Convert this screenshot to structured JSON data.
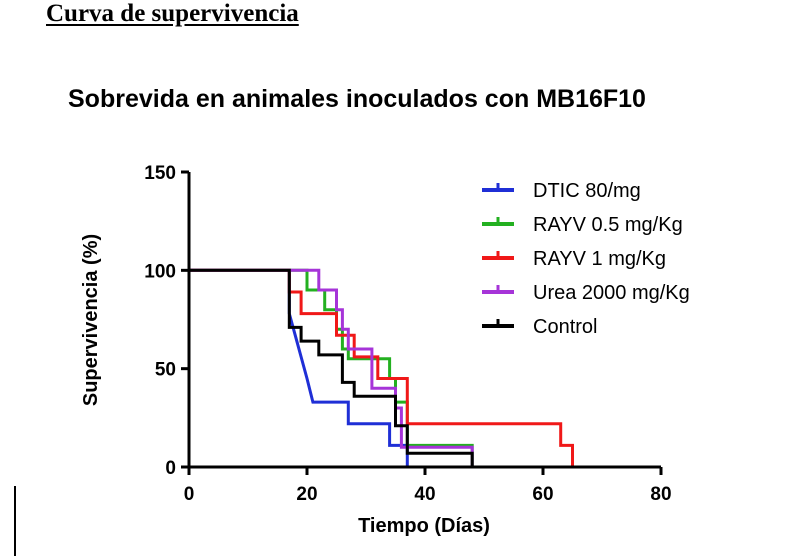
{
  "header": {
    "heading": "Curva de supervivencia"
  },
  "colors": {
    "axis": "#000000",
    "dtic": "#1f2fd6",
    "rayv05": "#23b020",
    "rayv1": "#f01818",
    "urea": "#a634d8",
    "control": "#000000"
  },
  "chart_data": {
    "type": "line",
    "step": true,
    "title": "Sobrevida en animales inoculados con MB16F10",
    "xlabel": "Tiempo (Días)",
    "ylabel": "Supervivencia (%)",
    "xlim": [
      0,
      80
    ],
    "ylim": [
      0,
      150
    ],
    "xticks": [
      "0",
      "20",
      "40",
      "60",
      "80"
    ],
    "yticks": [
      "0",
      "50",
      "100",
      "150"
    ],
    "grid": false,
    "legend_position": "top-right",
    "series": [
      {
        "name": "DTIC 80/mg",
        "color": "#1f2fd6",
        "points": [
          [
            0,
            100
          ],
          [
            17,
            100
          ],
          [
            17,
            78
          ],
          [
            18,
            67
          ],
          [
            19,
            56
          ],
          [
            20,
            45
          ],
          [
            21,
            33
          ],
          [
            27,
            33
          ],
          [
            27,
            22
          ],
          [
            34,
            22
          ],
          [
            34,
            11
          ],
          [
            37,
            11
          ],
          [
            37,
            0
          ]
        ]
      },
      {
        "name": "RAYV 0.5 mg/Kg",
        "color": "#23b020",
        "points": [
          [
            0,
            100
          ],
          [
            20,
            100
          ],
          [
            20,
            90
          ],
          [
            23,
            90
          ],
          [
            23,
            80
          ],
          [
            25,
            80
          ],
          [
            25,
            70
          ],
          [
            26,
            70
          ],
          [
            26,
            60
          ],
          [
            27,
            60
          ],
          [
            27,
            55
          ],
          [
            34,
            55
          ],
          [
            34,
            45
          ],
          [
            35,
            45
          ],
          [
            35,
            33
          ],
          [
            37,
            33
          ],
          [
            37,
            11
          ],
          [
            48,
            11
          ],
          [
            48,
            0
          ]
        ]
      },
      {
        "name": "RAYV 1 mg/Kg",
        "color": "#f01818",
        "points": [
          [
            0,
            100
          ],
          [
            17,
            100
          ],
          [
            17,
            89
          ],
          [
            19,
            89
          ],
          [
            19,
            78
          ],
          [
            25,
            78
          ],
          [
            25,
            67
          ],
          [
            28,
            67
          ],
          [
            28,
            56
          ],
          [
            32,
            56
          ],
          [
            32,
            45
          ],
          [
            37,
            45
          ],
          [
            37,
            22
          ],
          [
            63,
            22
          ],
          [
            63,
            11
          ],
          [
            65,
            11
          ],
          [
            65,
            0
          ]
        ]
      },
      {
        "name": "Urea 2000 mg/Kg",
        "color": "#a634d8",
        "points": [
          [
            0,
            100
          ],
          [
            22,
            100
          ],
          [
            22,
            90
          ],
          [
            25,
            90
          ],
          [
            25,
            80
          ],
          [
            26,
            80
          ],
          [
            26,
            70
          ],
          [
            27,
            70
          ],
          [
            27,
            60
          ],
          [
            31,
            60
          ],
          [
            31,
            40
          ],
          [
            35,
            40
          ],
          [
            35,
            30
          ],
          [
            36,
            30
          ],
          [
            36,
            10
          ],
          [
            48,
            10
          ],
          [
            48,
            0
          ]
        ]
      },
      {
        "name": "Control",
        "color": "#000000",
        "points": [
          [
            0,
            100
          ],
          [
            17,
            100
          ],
          [
            17,
            71
          ],
          [
            19,
            71
          ],
          [
            19,
            64
          ],
          [
            22,
            64
          ],
          [
            22,
            57
          ],
          [
            26,
            57
          ],
          [
            26,
            43
          ],
          [
            28,
            43
          ],
          [
            28,
            36
          ],
          [
            35,
            36
          ],
          [
            35,
            21
          ],
          [
            37,
            21
          ],
          [
            37,
            7
          ],
          [
            48,
            7
          ],
          [
            48,
            0
          ]
        ]
      }
    ]
  }
}
